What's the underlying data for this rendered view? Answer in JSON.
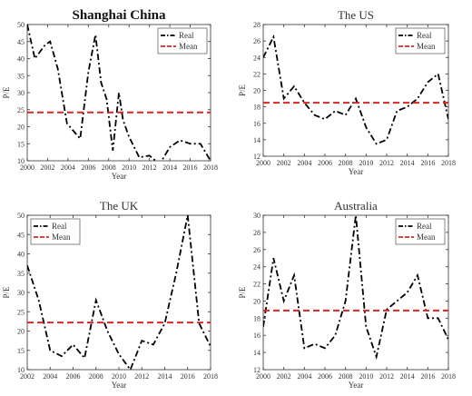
{
  "chart_data": [
    {
      "type": "line",
      "title": "Shanghai China",
      "xlabel": "Year",
      "ylabel": "P/E",
      "xlim": [
        2000,
        2018
      ],
      "ylim": [
        10,
        50
      ],
      "xticks": [
        2000,
        2002,
        2004,
        2006,
        2008,
        2010,
        2012,
        2014,
        2016,
        2018
      ],
      "yticks": [
        10,
        15,
        20,
        25,
        30,
        35,
        40,
        45,
        50
      ],
      "legend": "top-right",
      "series": [
        {
          "name": "Real",
          "style": "dash-dot",
          "color": "#000000",
          "x": [
            2000,
            2000.75,
            2001.75,
            2002.25,
            2003,
            2003.9,
            2004.75,
            2005.2,
            2006,
            2006.7,
            2007.25,
            2007.8,
            2008.4,
            2009,
            2009.4,
            2010,
            2011,
            2012,
            2013,
            2014,
            2015,
            2016,
            2017,
            2018
          ],
          "y": [
            50,
            40,
            44,
            45,
            37,
            21,
            18,
            16.5,
            36,
            47,
            33,
            28,
            13,
            30,
            22,
            17,
            11,
            11.5,
            9,
            14,
            16,
            15,
            15,
            10
          ]
        },
        {
          "name": "Mean",
          "style": "dashed",
          "color": "#d62728",
          "x": [
            2000,
            2018
          ],
          "y": [
            24.2,
            24.2
          ]
        }
      ]
    },
    {
      "type": "line",
      "title": "The US",
      "xlabel": "Year",
      "ylabel": "P/E",
      "xlim": [
        2000,
        2018
      ],
      "ylim": [
        12,
        28
      ],
      "xticks": [
        2000,
        2002,
        2004,
        2006,
        2008,
        2010,
        2012,
        2014,
        2016,
        2018
      ],
      "yticks": [
        12,
        14,
        16,
        18,
        20,
        22,
        24,
        26,
        28
      ],
      "legend": "top-right",
      "series": [
        {
          "name": "Real",
          "style": "dash-dot",
          "color": "#000000",
          "x": [
            2000,
            2001,
            2002,
            2003,
            2004,
            2005,
            2006,
            2007,
            2008,
            2009,
            2010,
            2011,
            2012,
            2013,
            2014,
            2015,
            2016,
            2017,
            2018
          ],
          "y": [
            24,
            26.5,
            19,
            20.5,
            18.5,
            17,
            16.5,
            17.5,
            17,
            19,
            15.5,
            13.5,
            14,
            17.5,
            18,
            19,
            21,
            22,
            16.5
          ]
        },
        {
          "name": "Mean",
          "style": "dashed",
          "color": "#d62728",
          "x": [
            2000,
            2018
          ],
          "y": [
            18.5,
            18.5
          ]
        }
      ]
    },
    {
      "type": "line",
      "title": "The UK",
      "xlabel": "Year",
      "ylabel": "P/E",
      "xlim": [
        2002,
        2018
      ],
      "ylim": [
        10,
        50
      ],
      "xticks": [
        2002,
        2004,
        2006,
        2008,
        2010,
        2012,
        2014,
        2016,
        2018
      ],
      "yticks": [
        10,
        15,
        20,
        25,
        30,
        35,
        40,
        45,
        50
      ],
      "legend": "top-left",
      "series": [
        {
          "name": "Real",
          "style": "dash-dot",
          "color": "#000000",
          "x": [
            2002,
            2003,
            2004,
            2005,
            2006,
            2007,
            2008,
            2009,
            2010,
            2011,
            2012,
            2013,
            2014,
            2015,
            2016,
            2017,
            2018
          ],
          "y": [
            37,
            28,
            15,
            13.5,
            16.5,
            13,
            28,
            20,
            14,
            10,
            17.5,
            16.5,
            22,
            35,
            50,
            22,
            16
          ]
        },
        {
          "name": "Mean",
          "style": "dashed",
          "color": "#d62728",
          "x": [
            2002,
            2018
          ],
          "y": [
            22.2,
            22.2
          ]
        }
      ]
    },
    {
      "type": "line",
      "title": "Australia",
      "xlabel": "Year",
      "ylabel": "P/E",
      "xlim": [
        2000,
        2018
      ],
      "ylim": [
        12,
        30
      ],
      "xticks": [
        2000,
        2002,
        2004,
        2006,
        2008,
        2010,
        2012,
        2014,
        2016,
        2018
      ],
      "yticks": [
        12,
        14,
        16,
        18,
        20,
        22,
        24,
        26,
        28,
        30
      ],
      "legend": "top-right",
      "series": [
        {
          "name": "Real",
          "style": "dash-dot",
          "color": "#000000",
          "x": [
            2000,
            2001,
            2002,
            2003,
            2004,
            2005,
            2006,
            2007,
            2008,
            2009,
            2010,
            2011,
            2012,
            2013,
            2014,
            2015,
            2016,
            2017,
            2018
          ],
          "y": [
            17,
            25,
            20,
            23,
            14.5,
            15,
            14.5,
            16,
            20,
            30,
            17,
            13.5,
            19,
            20,
            21,
            23,
            18,
            18,
            15.5
          ]
        },
        {
          "name": "Mean",
          "style": "dashed",
          "color": "#d62728",
          "x": [
            2000,
            2018
          ],
          "y": [
            18.9,
            18.9
          ]
        }
      ]
    }
  ]
}
